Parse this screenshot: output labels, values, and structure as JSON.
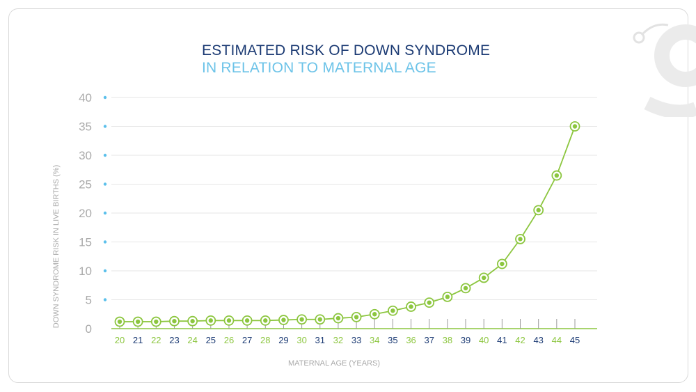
{
  "chart_data": {
    "type": "line",
    "title": "ESTIMATED RISK OF DOWN SYNDROME",
    "subtitle": "IN RELATION TO MATERNAL AGE",
    "xlabel": "MATERNAL AGE (YEARS)",
    "ylabel": "DOWN SYNDROME RISK IN LIVE BIRTHS (%)",
    "ylim": [
      0,
      40
    ],
    "yticks": [
      "0",
      "5",
      "10",
      "15",
      "20",
      "25",
      "30",
      "35",
      "40"
    ],
    "categories": [
      "20",
      "21",
      "22",
      "23",
      "24",
      "25",
      "26",
      "27",
      "28",
      "29",
      "30",
      "31",
      "32",
      "33",
      "34",
      "35",
      "36",
      "37",
      "38",
      "39",
      "40",
      "41",
      "42",
      "43",
      "44",
      "45"
    ],
    "series": [
      {
        "values": [
          1.2,
          1.2,
          1.2,
          1.3,
          1.3,
          1.4,
          1.4,
          1.4,
          1.4,
          1.5,
          1.6,
          1.6,
          1.8,
          2.0,
          2.5,
          3.1,
          3.8,
          4.5,
          5.5,
          7.0,
          8.8,
          11.2,
          15.5,
          20.5,
          26.5,
          35.0
        ]
      }
    ],
    "grid": true,
    "colors": {
      "line": "#8cc63f",
      "title": "#1b3a73",
      "subtitle": "#6cc3e8",
      "tick_dot": "#5bc0eb",
      "tick_label_a": "#8cc63f",
      "tick_label_b": "#1b3a73",
      "axis_text": "#aaaaaa",
      "grid": "#e6e6e6"
    }
  }
}
